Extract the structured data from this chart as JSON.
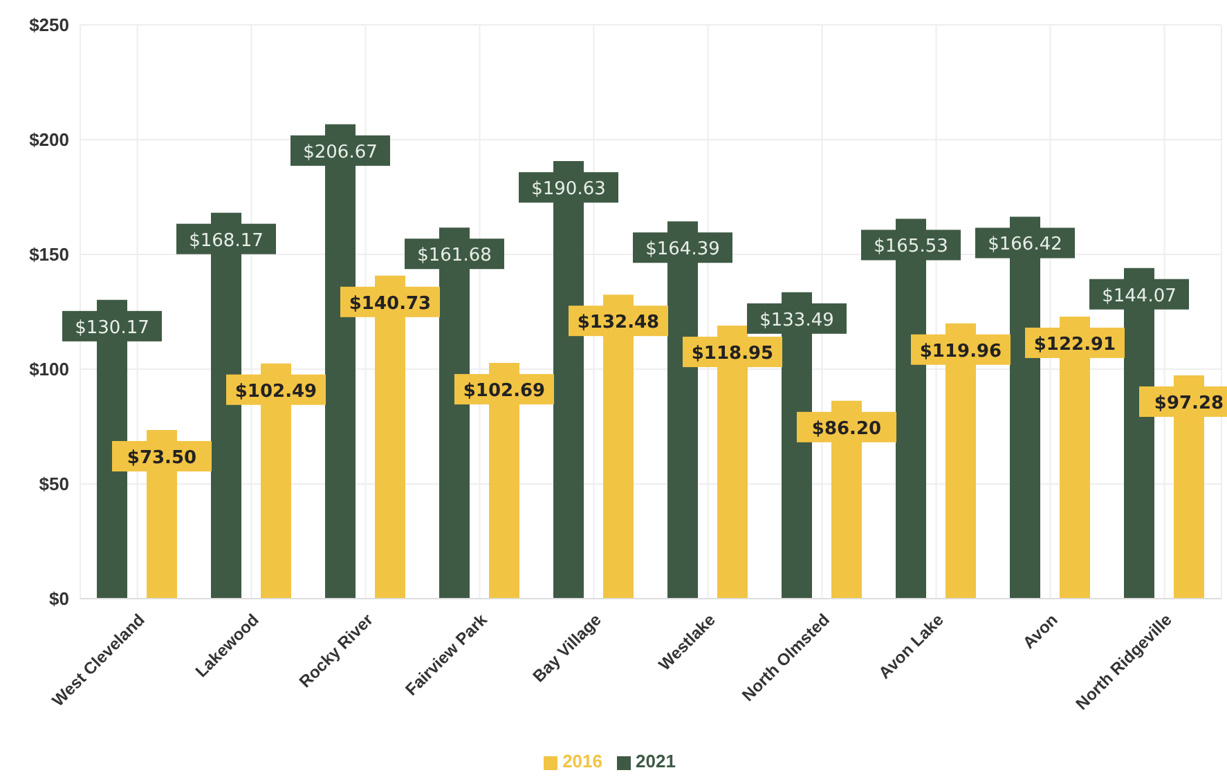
{
  "chart_data": {
    "type": "bar",
    "categories": [
      "West Cleveland",
      "Lakewood",
      "Rocky River",
      "Fairview Park",
      "Bay Village",
      "Westlake",
      "North Olmsted",
      "Avon Lake",
      "Avon",
      "North Ridgeville"
    ],
    "series": [
      {
        "name": "2021",
        "color": "#3e5a45",
        "values": [
          130.17,
          168.17,
          206.67,
          161.68,
          190.63,
          164.39,
          133.49,
          165.53,
          166.42,
          144.07
        ],
        "value_labels": [
          "$130.17",
          "$168.17",
          "$206.67",
          "$161.68",
          "$190.63",
          "$164.39",
          "$133.49",
          "$165.53",
          "$166.42",
          "$144.07"
        ]
      },
      {
        "name": "2016",
        "color": "#f2c444",
        "values": [
          73.5,
          102.49,
          140.73,
          102.69,
          132.48,
          118.95,
          86.2,
          119.96,
          122.91,
          97.28
        ],
        "value_labels": [
          "$73.50",
          "$102.49",
          "$140.73",
          "$102.69",
          "$132.48",
          "$118.95",
          "$86.20",
          "$119.96",
          "$122.91",
          "$97.28"
        ]
      }
    ],
    "ylim": [
      0,
      250
    ],
    "yticks": [
      {
        "value": 0,
        "label": "$0"
      },
      {
        "value": 50,
        "label": "$50"
      },
      {
        "value": 100,
        "label": "$100"
      },
      {
        "value": 150,
        "label": "$150"
      },
      {
        "value": 200,
        "label": "$200"
      },
      {
        "value": 250,
        "label": "$250"
      }
    ],
    "grid": true,
    "legend": "bottom"
  }
}
